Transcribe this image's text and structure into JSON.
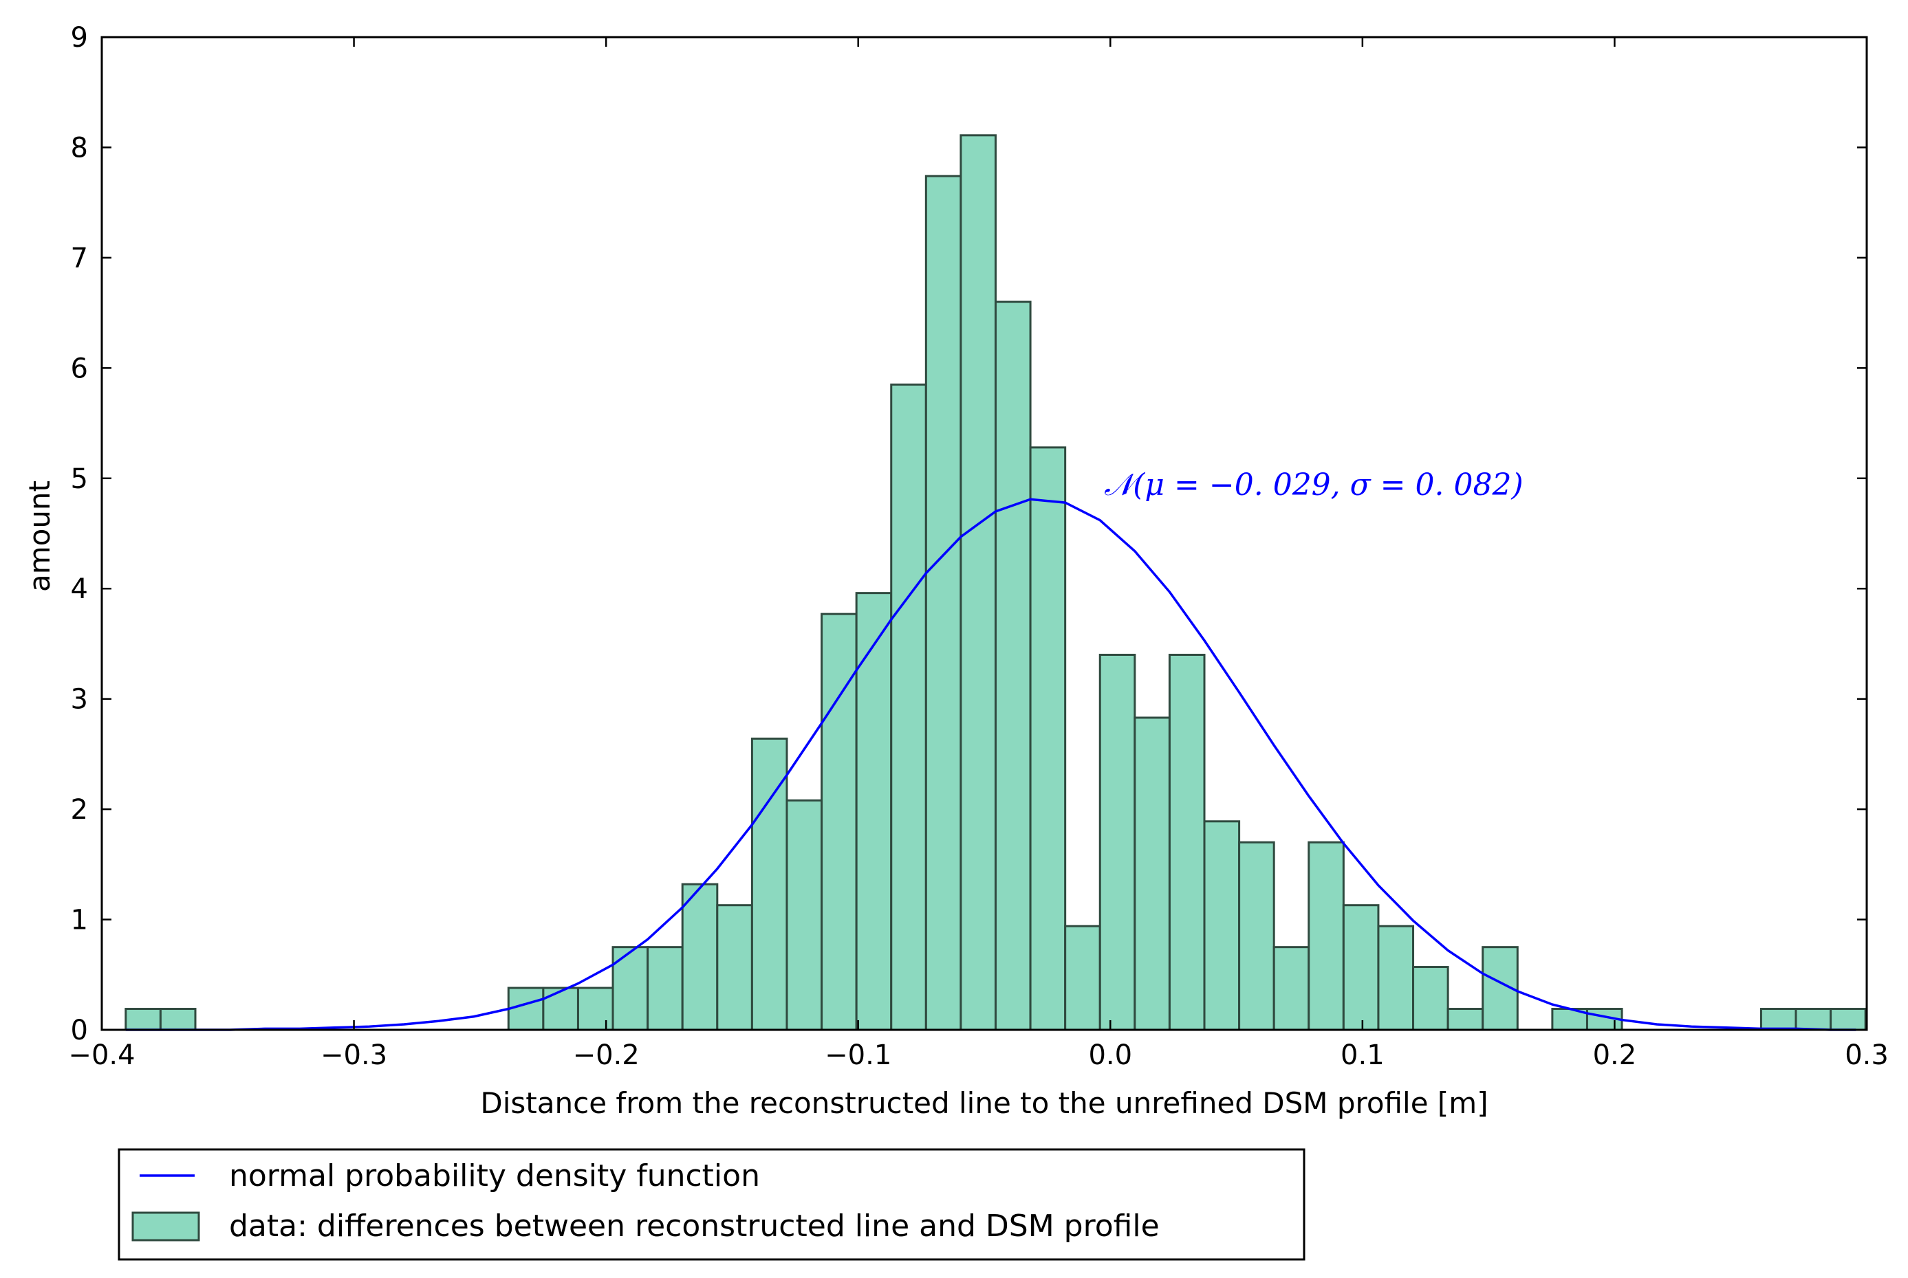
{
  "chart_data": {
    "type": "bar",
    "xlabel": "Distance from the reconstructed line to the unrefined DSM profile [m]",
    "ylabel": "amount",
    "xlim": [
      -0.4,
      0.3
    ],
    "ylim": [
      0,
      9
    ],
    "xticks": [
      "−0.4",
      "−0.3",
      "−0.2",
      "−0.1",
      "0.0",
      "0.1",
      "0.2",
      "0.3"
    ],
    "yticks": [
      "0",
      "1",
      "2",
      "3",
      "4",
      "5",
      "6",
      "7",
      "8",
      "9"
    ],
    "grid": false,
    "legend_position": "below-left",
    "colors": {
      "bars": "#8cd9bf",
      "bar_edge": "#2f4a3f",
      "curve": "#0000ff"
    },
    "histogram": {
      "name": "data: differences between reconstructed line and DSM profile",
      "bin_start": -0.3905,
      "bin_width": 0.0138,
      "values": [
        0.19,
        0.19,
        0,
        0,
        0,
        0,
        0,
        0,
        0,
        0,
        0,
        0.38,
        0.38,
        0.38,
        0.75,
        0.75,
        1.32,
        1.13,
        2.64,
        2.08,
        3.77,
        3.96,
        5.85,
        7.74,
        8.11,
        6.6,
        5.28,
        0.94,
        3.4,
        2.83,
        3.4,
        1.89,
        1.7,
        0.75,
        1.7,
        1.13,
        0.94,
        0.57,
        0.19,
        0.75,
        0,
        0.19,
        0.19,
        0,
        0,
        0,
        0,
        0.19,
        0.19,
        0.19
      ]
    },
    "curve": {
      "name": "normal probability density function",
      "x": [
        -0.3905,
        -0.3767,
        -0.3629,
        -0.3491,
        -0.3353,
        -0.3215,
        -0.3077,
        -0.2939,
        -0.2801,
        -0.2663,
        -0.2525,
        -0.2387,
        -0.2249,
        -0.2111,
        -0.1973,
        -0.1835,
        -0.1697,
        -0.1559,
        -0.1421,
        -0.1283,
        -0.1145,
        -0.1007,
        -0.0869,
        -0.0731,
        -0.0593,
        -0.0455,
        -0.0317,
        -0.0179,
        -0.0041,
        0.0097,
        0.0235,
        0.0373,
        0.0511,
        0.0649,
        0.0787,
        0.0925,
        0.1063,
        0.1201,
        0.1339,
        0.1477,
        0.1615,
        0.1753,
        0.1891,
        0.2029,
        0.2167,
        0.2305,
        0.2443,
        0.2581,
        0.2719,
        0.2857,
        0.2957
      ],
      "y": [
        0.0,
        0.0,
        0.0,
        0.0,
        0.01,
        0.01,
        0.02,
        0.03,
        0.05,
        0.08,
        0.12,
        0.19,
        0.28,
        0.42,
        0.59,
        0.82,
        1.11,
        1.46,
        1.86,
        2.31,
        2.78,
        3.26,
        3.72,
        4.14,
        4.47,
        4.7,
        4.81,
        4.78,
        4.62,
        4.34,
        3.97,
        3.53,
        3.06,
        2.58,
        2.12,
        1.69,
        1.31,
        0.99,
        0.72,
        0.51,
        0.35,
        0.23,
        0.15,
        0.09,
        0.05,
        0.03,
        0.02,
        0.01,
        0.01,
        0.0,
        0.0
      ]
    },
    "annotation": {
      "text": "𝒩(μ = −0. 029, σ = 0. 082)",
      "x": -0.0025,
      "y": 4.85
    }
  }
}
